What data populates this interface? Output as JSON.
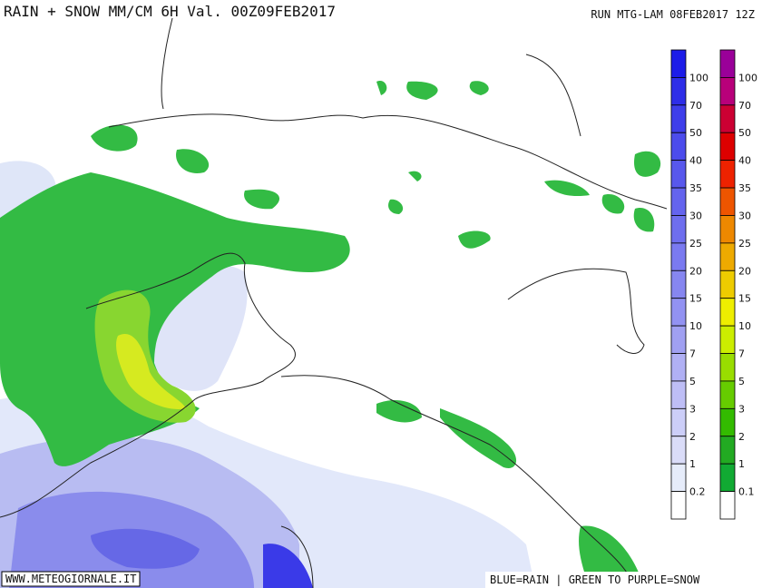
{
  "header": {
    "title": "RAIN + SNOW MM/CM 6H Val. 00Z09FEB2017",
    "run": "RUN MTG-LAM 08FEB2017 12Z"
  },
  "legends": [
    {
      "colors": [
        "#1c1ce8",
        "#2e2ee8",
        "#3e3eea",
        "#4c4cec",
        "#5858ec",
        "#6464ee",
        "#6e6eee",
        "#7a7af0",
        "#8686f0",
        "#9292f2",
        "#a0a0f2",
        "#b0b0f4",
        "#bebef6",
        "#cccef8",
        "#dadcf8",
        "#e6ecfa",
        "#ffffff"
      ],
      "labels": [
        "100",
        "70",
        "50",
        "40",
        "35",
        "30",
        "25",
        "20",
        "15",
        "10",
        "7",
        "5",
        "3",
        "2",
        "1",
        "0.2"
      ]
    },
    {
      "colors": [
        "#9a0099",
        "#b8007a",
        "#cc0033",
        "#dd0000",
        "#ee2200",
        "#ee5500",
        "#ee8800",
        "#eeaa00",
        "#eecc00",
        "#eeee00",
        "#ccee00",
        "#99dd00",
        "#66cc00",
        "#33bb00",
        "#22aa22",
        "#11aa33",
        "#ffffff"
      ],
      "labels": [
        "100",
        "70",
        "50",
        "40",
        "35",
        "30",
        "25",
        "20",
        "15",
        "10",
        "7",
        "5",
        "3",
        "2",
        "1",
        "0.1"
      ]
    }
  ],
  "footer": {
    "site": "WWW.METEOGIORNALE.IT",
    "note": "BLUE=RAIN | GREEN TO PURPLE=SNOW"
  }
}
